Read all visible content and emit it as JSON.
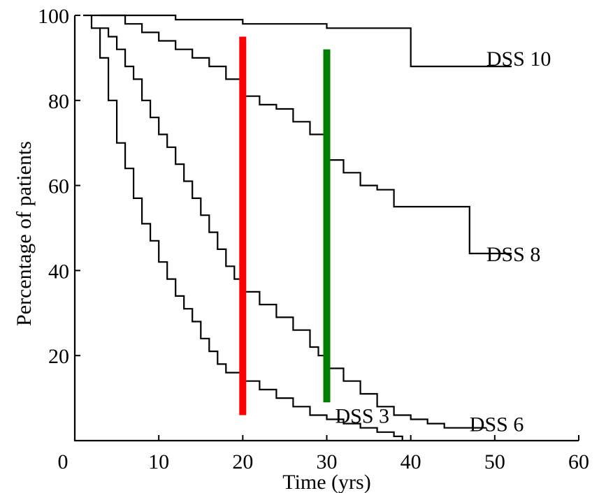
{
  "chart_data": {
    "type": "line",
    "xlabel": "Time (yrs)",
    "ylabel": "Percentage of patients",
    "xlim": [
      0,
      60
    ],
    "ylim": [
      0,
      100
    ],
    "xticks": [
      0,
      10,
      20,
      30,
      40,
      50,
      60
    ],
    "yticks": [
      20,
      40,
      60,
      80,
      100
    ],
    "x_tick_labels": [
      "0",
      "10",
      "20",
      "30",
      "40",
      "50",
      "60"
    ],
    "y_tick_labels": [
      "20",
      "40",
      "60",
      "80",
      "100"
    ],
    "grid": false,
    "series": [
      {
        "name": "DSS 10",
        "label_at": [
          49,
          90
        ],
        "points": [
          [
            2,
            100
          ],
          [
            8,
            100
          ],
          [
            12,
            99
          ],
          [
            20,
            98
          ],
          [
            28,
            98
          ],
          [
            30,
            97
          ],
          [
            39,
            97
          ],
          [
            40,
            88
          ],
          [
            52,
            88
          ]
        ]
      },
      {
        "name": "DSS 8",
        "label_at": [
          49,
          44
        ],
        "points": [
          [
            3,
            100
          ],
          [
            6,
            98
          ],
          [
            8,
            96
          ],
          [
            10,
            94
          ],
          [
            12,
            92
          ],
          [
            14,
            90
          ],
          [
            16,
            88
          ],
          [
            18,
            85
          ],
          [
            20,
            81
          ],
          [
            22,
            79
          ],
          [
            24,
            78
          ],
          [
            26,
            75
          ],
          [
            28,
            72
          ],
          [
            30,
            66
          ],
          [
            32,
            63
          ],
          [
            34,
            60
          ],
          [
            36,
            59
          ],
          [
            38,
            55
          ],
          [
            45,
            55
          ],
          [
            47,
            44
          ],
          [
            52,
            44
          ]
        ]
      },
      {
        "name": "DSS 6",
        "label_at": [
          47,
          4
        ],
        "points": [
          [
            3,
            97
          ],
          [
            4,
            95
          ],
          [
            5,
            92
          ],
          [
            6,
            88
          ],
          [
            7,
            85
          ],
          [
            8,
            80
          ],
          [
            9,
            76
          ],
          [
            10,
            72
          ],
          [
            11,
            69
          ],
          [
            12,
            65
          ],
          [
            13,
            61
          ],
          [
            14,
            57
          ],
          [
            15,
            53
          ],
          [
            16,
            49
          ],
          [
            17,
            45
          ],
          [
            18,
            41
          ],
          [
            19,
            38
          ],
          [
            20,
            35
          ],
          [
            22,
            32
          ],
          [
            24,
            29
          ],
          [
            26,
            26
          ],
          [
            28,
            22
          ],
          [
            29,
            20
          ],
          [
            30,
            17
          ],
          [
            32,
            14
          ],
          [
            34,
            11
          ],
          [
            36,
            8
          ],
          [
            38,
            6
          ],
          [
            40,
            5
          ],
          [
            42,
            4
          ],
          [
            44,
            3
          ],
          [
            46,
            3
          ],
          [
            49,
            3
          ]
        ]
      },
      {
        "name": "DSS 3",
        "label_at": [
          31,
          6
        ],
        "points": [
          [
            1,
            100
          ],
          [
            2,
            97
          ],
          [
            3,
            90
          ],
          [
            4,
            80
          ],
          [
            5,
            70
          ],
          [
            6,
            64
          ],
          [
            7,
            57
          ],
          [
            8,
            51
          ],
          [
            9,
            47
          ],
          [
            10,
            42
          ],
          [
            11,
            38
          ],
          [
            12,
            34
          ],
          [
            13,
            31
          ],
          [
            14,
            28
          ],
          [
            15,
            24
          ],
          [
            16,
            21
          ],
          [
            17,
            18
          ],
          [
            18,
            16
          ],
          [
            20,
            14
          ],
          [
            22,
            12
          ],
          [
            24,
            10
          ],
          [
            26,
            8
          ],
          [
            28,
            6
          ],
          [
            30,
            5
          ],
          [
            32,
            4
          ],
          [
            34,
            3
          ],
          [
            36,
            2
          ],
          [
            38,
            1
          ],
          [
            39,
            0
          ]
        ]
      }
    ],
    "vertical_markers": [
      {
        "x": 20,
        "y_from": 6,
        "y_to": 95,
        "color": "#ff0000"
      },
      {
        "x": 30,
        "y_from": 9,
        "y_to": 92,
        "color": "#008000"
      }
    ]
  }
}
